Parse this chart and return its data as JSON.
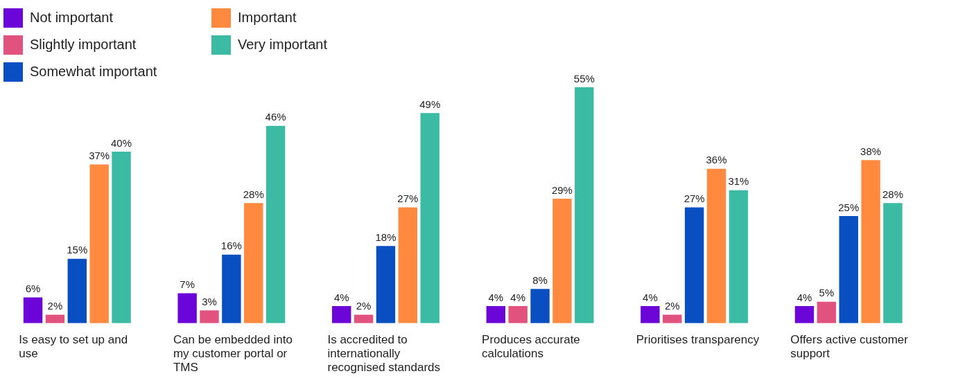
{
  "chart_data": {
    "type": "bar",
    "categories": [
      "Is easy to set up and use",
      "Can be embedded into my customer portal or TMS",
      "Is accredited to internationally recognised standards",
      "Produces accurate calculations",
      "Prioritises transparency",
      "Offers active customer support"
    ],
    "series": [
      {
        "name": "Not important",
        "color": "#6c06d8",
        "values": [
          6,
          7,
          4,
          4,
          4,
          4
        ],
        "value_labels": [
          "6%",
          "7%",
          "4%",
          "4%",
          "4%",
          "4%"
        ]
      },
      {
        "name": "Slightly important",
        "color": "#e2527f",
        "values": [
          2,
          3,
          2,
          4,
          2,
          5
        ],
        "value_labels": [
          "2%",
          "3%",
          "2%",
          "4%",
          "2%",
          "5%"
        ]
      },
      {
        "name": "Somewhat important",
        "color": "#0a4fc2",
        "values": [
          15,
          16,
          18,
          8,
          27,
          25
        ],
        "value_labels": [
          "15%",
          "16%",
          "18%",
          "8%",
          "27%",
          "25%"
        ]
      },
      {
        "name": "Important",
        "color": "#ff8a3f",
        "values": [
          37,
          28,
          27,
          29,
          36,
          38
        ],
        "value_labels": [
          "37%",
          "28%",
          "27%",
          "29%",
          "36%",
          "38%"
        ]
      },
      {
        "name": "Very important",
        "color": "#3bbba4",
        "values": [
          40,
          46,
          49,
          55,
          31,
          28
        ],
        "value_labels": [
          "40%",
          "46%",
          "49%",
          "55%",
          "31%",
          "28%"
        ]
      }
    ],
    "legend": "top left",
    "grid": false
  }
}
